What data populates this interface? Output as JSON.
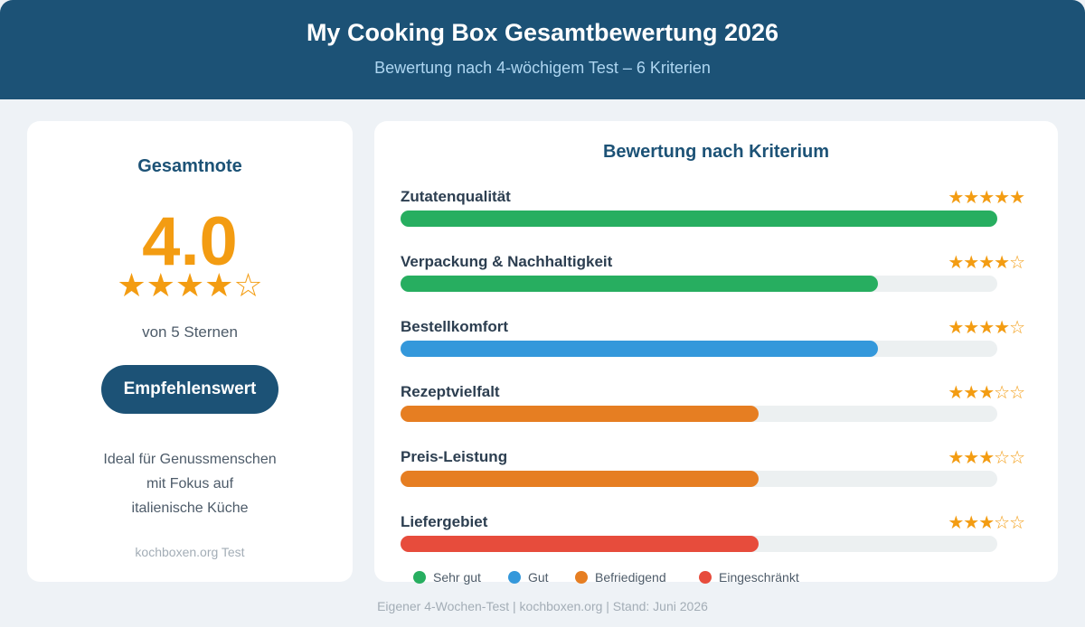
{
  "header": {
    "title": "My Cooking Box Gesamtbewertung 2026",
    "subtitle": "Bewertung nach 4-wöchigem Test – 6 Kriterien"
  },
  "overall": {
    "heading": "Gesamtnote",
    "score": "4.0",
    "stars": "★★★★☆",
    "of_text": "von 5 Sternen",
    "badge": "Empfehlenswert",
    "description_lines": [
      "Ideal für Genussmenschen",
      "mit Fokus auf",
      "italienische Küche"
    ],
    "source": "kochboxen.org Test"
  },
  "chart_data": {
    "type": "bar",
    "title": "Bewertung nach Kriterium",
    "categories": [
      "Zutatenqualität",
      "Verpackung & Nachhaltigkeit",
      "Bestellkomfort",
      "Rezeptvielfalt",
      "Preis-Leistung",
      "Liefergebiet"
    ],
    "values": [
      5,
      4,
      4,
      3,
      3,
      3
    ],
    "star_labels": [
      "★★★★★",
      "★★★★☆",
      "★★★★☆",
      "★★★☆☆",
      "★★★☆☆",
      "★★★☆☆"
    ],
    "bar_colors": [
      "#27ae60",
      "#27ae60",
      "#3498db",
      "#e67e22",
      "#e67e22",
      "#e74c3c"
    ],
    "xlim": [
      0,
      5
    ],
    "legend": [
      {
        "label": "Sehr gut",
        "color": "#27ae60"
      },
      {
        "label": "Gut",
        "color": "#3498db"
      },
      {
        "label": "Befriedigend",
        "color": "#e67e22"
      },
      {
        "label": "Eingeschränkt",
        "color": "#e74c3c"
      }
    ]
  },
  "footer": "Eigener 4-Wochen-Test | kochboxen.org | Stand: Juni 2026"
}
